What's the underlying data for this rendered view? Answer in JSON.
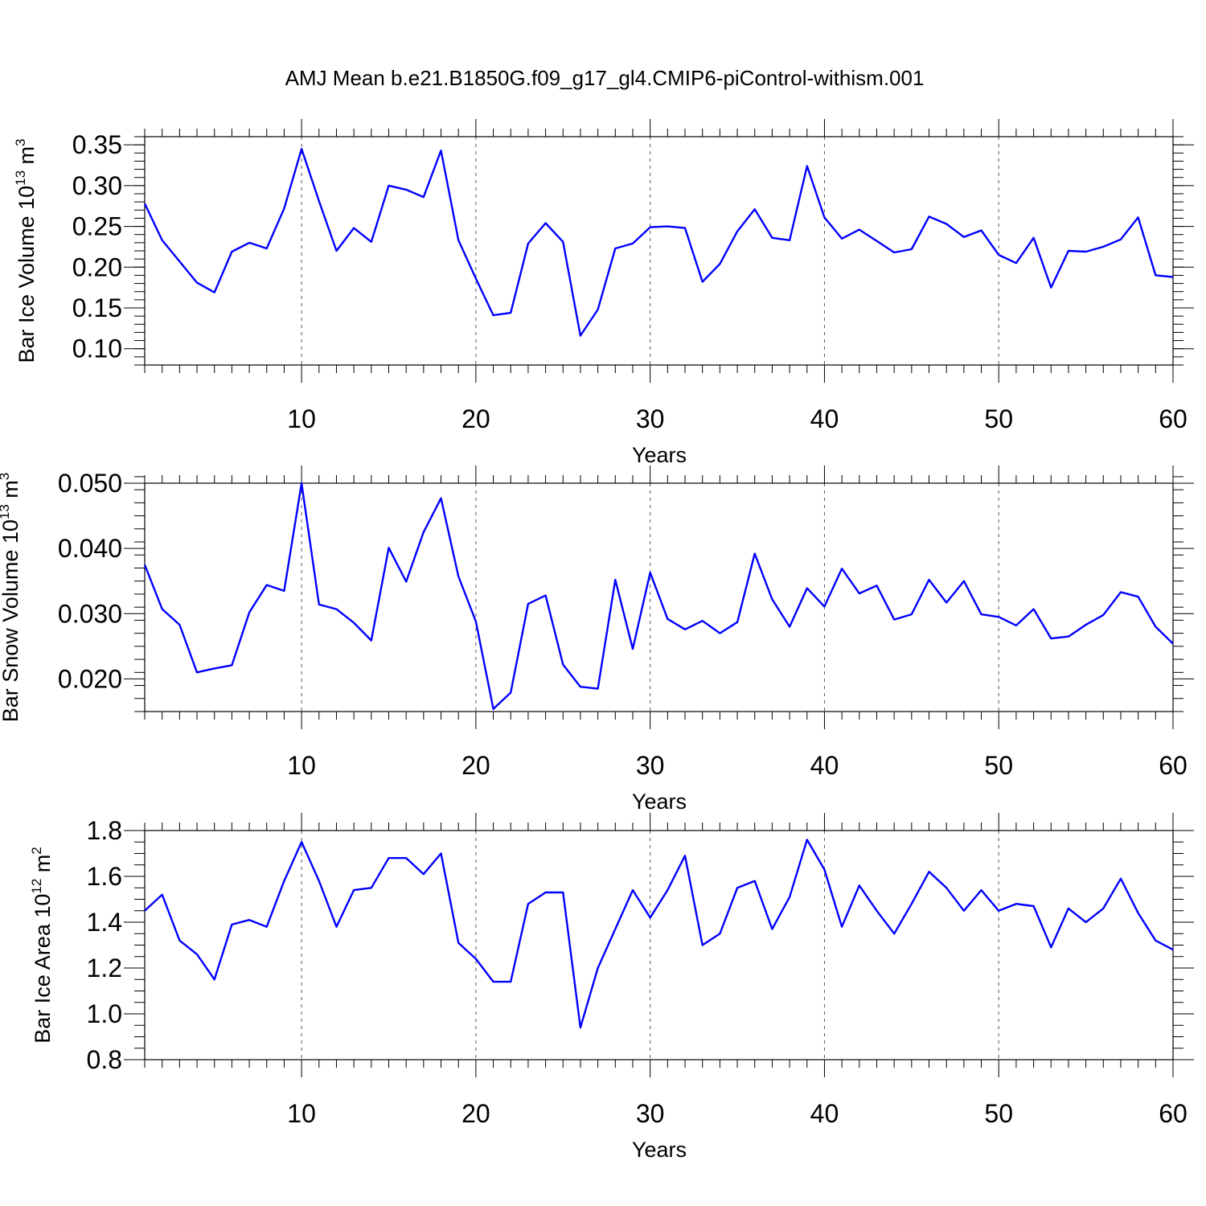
{
  "title": "AMJ Mean b.e21.B1850G.f09_g17_gl4.CMIP6-piControl-withism.001",
  "colors": {
    "line": "#0000ff",
    "grid": "#555555"
  },
  "chart_data": [
    {
      "type": "line",
      "xlabel": "Years",
      "ylabel": {
        "text": "Bar Ice Volume 10",
        "sup": "13",
        "unit": " m",
        "unit_sup": "3"
      },
      "xlim": [
        1,
        60
      ],
      "ylim": [
        0.08,
        0.36
      ],
      "x_ticks": [
        10,
        20,
        30,
        40,
        50,
        60
      ],
      "x_tick_labels": [
        "10",
        "20",
        "30",
        "40",
        "50",
        "60"
      ],
      "y_ticks": [
        0.1,
        0.15,
        0.2,
        0.25,
        0.3,
        0.35
      ],
      "y_tick_labels": [
        "0.10",
        "0.15",
        "0.20",
        "0.25",
        "0.30",
        "0.35"
      ],
      "y_minor_step": 0.01,
      "grid": "x-dashed",
      "x": [
        1,
        2,
        3,
        4,
        5,
        6,
        7,
        8,
        9,
        10,
        11,
        12,
        13,
        14,
        15,
        16,
        17,
        18,
        19,
        20,
        21,
        22,
        23,
        24,
        25,
        26,
        27,
        28,
        29,
        30,
        31,
        32,
        33,
        34,
        35,
        36,
        37,
        38,
        39,
        40,
        41,
        42,
        43,
        44,
        45,
        46,
        47,
        48,
        49,
        50,
        51,
        52,
        53,
        54,
        55,
        56,
        57,
        58,
        59,
        60
      ],
      "values": [
        0.278,
        0.233,
        0.207,
        0.181,
        0.169,
        0.219,
        0.23,
        0.223,
        0.272,
        0.345,
        0.281,
        0.22,
        0.248,
        0.231,
        0.3,
        0.295,
        0.286,
        0.343,
        0.233,
        0.186,
        0.141,
        0.144,
        0.229,
        0.254,
        0.231,
        0.116,
        0.148,
        0.223,
        0.229,
        0.249,
        0.25,
        0.248,
        0.182,
        0.204,
        0.244,
        0.271,
        0.236,
        0.233,
        0.324,
        0.261,
        0.235,
        0.246,
        0.232,
        0.218,
        0.222,
        0.262,
        0.253,
        0.237,
        0.245,
        0.215,
        0.205,
        0.236,
        0.175,
        0.22,
        0.219,
        0.225,
        0.234,
        0.261,
        0.19,
        0.188
      ]
    },
    {
      "type": "line",
      "xlabel": "Years",
      "ylabel": {
        "text": "Bar Snow Volume 10",
        "sup": "13",
        "unit": " m",
        "unit_sup": "3"
      },
      "xlim": [
        1,
        60
      ],
      "ylim": [
        0.015,
        0.05
      ],
      "x_ticks": [
        10,
        20,
        30,
        40,
        50,
        60
      ],
      "x_tick_labels": [
        "10",
        "20",
        "30",
        "40",
        "50",
        "60"
      ],
      "y_ticks": [
        0.02,
        0.03,
        0.04,
        0.05
      ],
      "y_tick_labels": [
        "0.020",
        "0.030",
        "0.040",
        "0.050"
      ],
      "y_minor_step": 0.002,
      "grid": "x-dashed",
      "x": [
        1,
        2,
        3,
        4,
        5,
        6,
        7,
        8,
        9,
        10,
        11,
        12,
        13,
        14,
        15,
        16,
        17,
        18,
        19,
        20,
        21,
        22,
        23,
        24,
        25,
        26,
        27,
        28,
        29,
        30,
        31,
        32,
        33,
        34,
        35,
        36,
        37,
        38,
        39,
        40,
        41,
        42,
        43,
        44,
        45,
        46,
        47,
        48,
        49,
        50,
        51,
        52,
        53,
        54,
        55,
        56,
        57,
        58,
        59,
        60
      ],
      "values": [
        0.0375,
        0.0307,
        0.0283,
        0.021,
        0.0216,
        0.0221,
        0.0302,
        0.0344,
        0.0335,
        0.05,
        0.0314,
        0.0307,
        0.0286,
        0.0259,
        0.0401,
        0.0349,
        0.0425,
        0.0477,
        0.0357,
        0.0288,
        0.0154,
        0.0179,
        0.0315,
        0.0328,
        0.0222,
        0.0188,
        0.0185,
        0.0352,
        0.0246,
        0.0363,
        0.0292,
        0.0276,
        0.0289,
        0.027,
        0.0287,
        0.0392,
        0.0322,
        0.028,
        0.0339,
        0.0311,
        0.0369,
        0.0331,
        0.0343,
        0.0291,
        0.0299,
        0.0352,
        0.0317,
        0.035,
        0.0299,
        0.0295,
        0.0282,
        0.0307,
        0.0262,
        0.0265,
        0.0283,
        0.0298,
        0.0333,
        0.0326,
        0.028,
        0.0254
      ]
    },
    {
      "type": "line",
      "xlabel": "Years",
      "ylabel": {
        "text": "Bar Ice Area 10",
        "sup": "12",
        "unit": " m",
        "unit_sup": "2"
      },
      "xlim": [
        1,
        60
      ],
      "ylim": [
        0.8,
        1.8
      ],
      "x_ticks": [
        10,
        20,
        30,
        40,
        50,
        60
      ],
      "x_tick_labels": [
        "10",
        "20",
        "30",
        "40",
        "50",
        "60"
      ],
      "y_ticks": [
        0.8,
        1.0,
        1.2,
        1.4,
        1.6,
        1.8
      ],
      "y_tick_labels": [
        "0.8",
        "1.0",
        "1.2",
        "1.4",
        "1.6",
        "1.8"
      ],
      "y_minor_step": 0.05,
      "grid": "x-dashed",
      "x": [
        1,
        2,
        3,
        4,
        5,
        6,
        7,
        8,
        9,
        10,
        11,
        12,
        13,
        14,
        15,
        16,
        17,
        18,
        19,
        20,
        21,
        22,
        23,
        24,
        25,
        26,
        27,
        28,
        29,
        30,
        31,
        32,
        33,
        34,
        35,
        36,
        37,
        38,
        39,
        40,
        41,
        42,
        43,
        44,
        45,
        46,
        47,
        48,
        49,
        50,
        51,
        52,
        53,
        54,
        55,
        56,
        57,
        58,
        59,
        60
      ],
      "values": [
        1.45,
        1.52,
        1.32,
        1.26,
        1.15,
        1.39,
        1.41,
        1.38,
        1.58,
        1.75,
        1.58,
        1.38,
        1.54,
        1.55,
        1.68,
        1.68,
        1.61,
        1.7,
        1.31,
        1.24,
        1.14,
        1.14,
        1.48,
        1.53,
        1.53,
        0.94,
        1.2,
        1.37,
        1.54,
        1.42,
        1.54,
        1.69,
        1.3,
        1.35,
        1.55,
        1.58,
        1.37,
        1.51,
        1.76,
        1.63,
        1.38,
        1.56,
        1.45,
        1.35,
        1.48,
        1.62,
        1.55,
        1.45,
        1.54,
        1.45,
        1.48,
        1.47,
        1.29,
        1.46,
        1.4,
        1.46,
        1.59,
        1.44,
        1.32,
        1.28
      ]
    }
  ]
}
